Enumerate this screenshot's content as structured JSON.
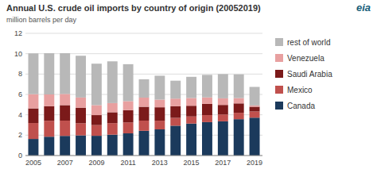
{
  "chart_data": {
    "type": "bar",
    "stacked": true,
    "title": "Annual U.S. crude oil imports by country of origin (20052019)",
    "subtitle": "million barrels per day",
    "annotations": [
      "eia"
    ],
    "categories": [
      "2005",
      null,
      "2007",
      null,
      "2009",
      null,
      "2011",
      null,
      "2013",
      null,
      "2015",
      null,
      "2017",
      null,
      "2019"
    ],
    "series": [
      {
        "name": "Canada",
        "color": "#1b3a5c",
        "values": [
          1.63,
          1.85,
          1.93,
          1.98,
          1.94,
          2.05,
          2.18,
          2.43,
          2.57,
          2.93,
          3.14,
          3.28,
          3.36,
          3.57,
          3.72
        ]
      },
      {
        "name": "Mexico",
        "color": "#c0504d",
        "values": [
          1.56,
          1.56,
          1.5,
          1.19,
          1.05,
          1.13,
          1.07,
          1.0,
          0.85,
          0.77,
          0.7,
          0.69,
          0.67,
          0.63,
          0.61
        ]
      },
      {
        "name": "Saudi Arabia",
        "color": "#7b1a1a",
        "values": [
          1.44,
          1.44,
          1.52,
          1.53,
          0.98,
          1.07,
          1.21,
          1.36,
          1.32,
          1.14,
          1.05,
          1.1,
          0.94,
          0.92,
          0.46
        ]
      },
      {
        "name": "Venezuela",
        "color": "#e8a0a0",
        "values": [
          1.4,
          1.15,
          1.1,
          1.0,
          0.98,
          0.9,
          0.88,
          0.9,
          0.75,
          0.75,
          0.76,
          0.64,
          0.65,
          0.52,
          0.13
        ]
      },
      {
        "name": "rest of world",
        "color": "#b8b8b8",
        "values": [
          4.0,
          4.05,
          4.0,
          4.1,
          4.07,
          4.1,
          3.63,
          1.8,
          2.35,
          1.76,
          2.08,
          2.21,
          2.38,
          2.33,
          1.82
        ]
      }
    ],
    "ylim": [
      0,
      12
    ],
    "yticks": [
      0,
      2,
      4,
      6,
      8,
      10,
      12
    ],
    "grid": true,
    "legend": "right"
  }
}
